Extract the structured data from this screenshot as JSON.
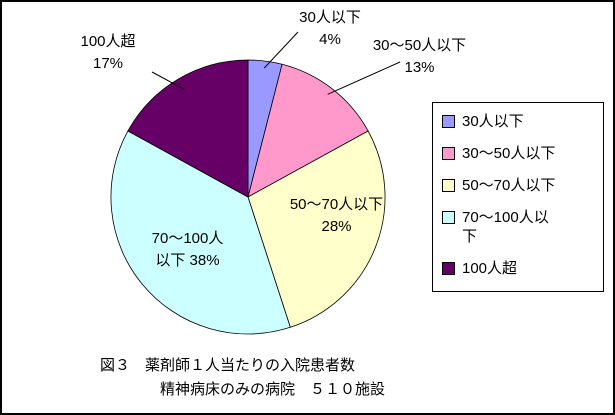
{
  "chart_data": {
    "type": "pie",
    "title": "図３　薬剤師１人当たりの入院患者数",
    "subtitle": "精神病床のみの病院　５１０施設",
    "labels": [
      "30人以下",
      "30～50人以下",
      "50～70人以下",
      "70～100人以下",
      "100人超"
    ],
    "values": [
      4,
      13,
      28,
      38,
      17
    ],
    "value_labels": [
      "4%",
      "13%",
      "28%",
      "38%",
      "17%"
    ],
    "colors": [
      "#9999ff",
      "#ff99cc",
      "#ffffcc",
      "#ccffff",
      "#660066"
    ],
    "legend_position": "right",
    "start_angle_deg": 0,
    "direction": "clockwise",
    "callouts": [
      {
        "line1": "30人以下",
        "line2": "4%"
      },
      {
        "line1": "30～50人以下",
        "line2": "13%"
      },
      {
        "line1": "50～70人以下",
        "line2": "28%"
      },
      {
        "line1": "70～100人",
        "line2": "以下 38%"
      },
      {
        "line1": "100人超",
        "line2": "17%"
      }
    ]
  }
}
